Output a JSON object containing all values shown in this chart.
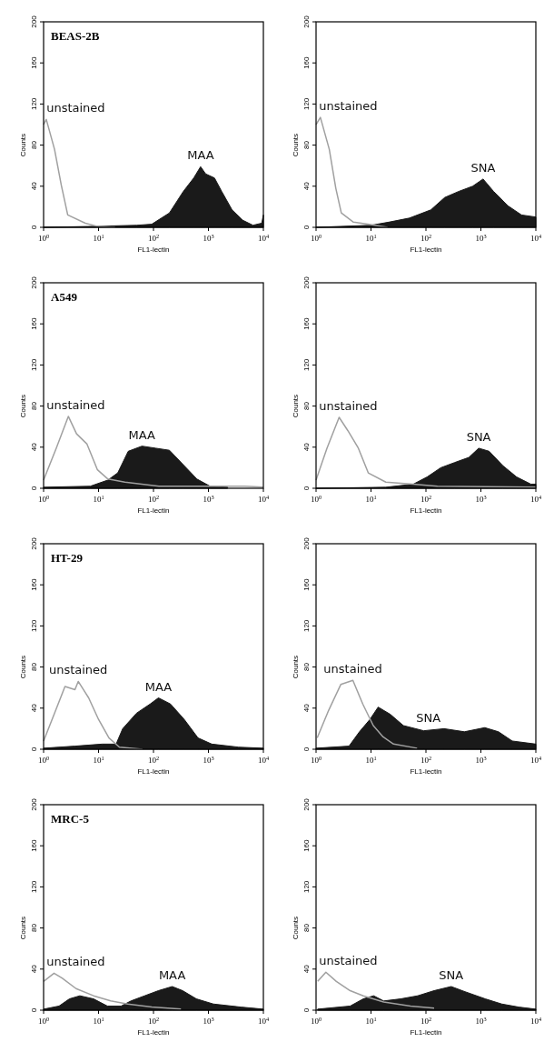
{
  "chart_data": [
    {
      "type": "area",
      "title": "BEAS-2B",
      "xlabel": "FL1-lectin",
      "ylabel": "Counts",
      "log": "x",
      "xlim": [
        1,
        10000
      ],
      "ylim": [
        0,
        200
      ],
      "xticks": [
        {
          "value": 1,
          "label": "10$^{0}$"
        },
        {
          "value": 10,
          "label": "10$^{1}$"
        },
        {
          "value": 100,
          "label": "10$^{2}$"
        },
        {
          "value": 1000,
          "label": "10$^{3}$"
        },
        {
          "value": 10000,
          "label": "10$^{4}$"
        }
      ],
      "yticks": [
        0,
        40,
        80,
        120,
        160,
        200
      ],
      "series": [
        {
          "name": "MAA",
          "color": "#1a1a1a",
          "x": [
            1,
            10,
            50,
            93,
            195,
            350,
            540,
            720,
            890,
            1290,
            1740,
            2690,
            4170,
            6460,
            9330,
            10000
          ],
          "values": [
            0,
            1,
            2,
            3,
            14,
            35,
            48,
            59,
            52,
            48,
            35,
            17,
            7,
            2,
            4,
            12
          ]
        },
        {
          "name": "unstained",
          "type": "line",
          "color": "#a0a0a0",
          "x": [
            1,
            1.12,
            1.58,
            2.1,
            2.75,
            5.75,
            9.5,
            20
          ],
          "values": [
            100,
            105,
            76,
            41,
            12,
            4,
            1,
            0
          ]
        }
      ]
    },
    {
      "type": "area",
      "xlabel": "FL1-lectin",
      "ylabel": "Counts",
      "log": "x",
      "xlim": [
        1,
        10000
      ],
      "ylim": [
        0,
        200
      ],
      "xticks": [
        {
          "value": 1,
          "label": "10$^{0}$"
        },
        {
          "value": 10,
          "label": "10$^{1}$"
        },
        {
          "value": 100,
          "label": "10$^{2}$"
        },
        {
          "value": 1000,
          "label": "10$^{3}$"
        },
        {
          "value": 10000,
          "label": "10$^{4}$"
        }
      ],
      "yticks": [
        0,
        40,
        80,
        120,
        160,
        200
      ],
      "series": [
        {
          "name": "SNA",
          "color": "#1a1a1a",
          "x": [
            1,
            10,
            21,
            50,
            123,
            219,
            398,
            708,
            1096,
            1698,
            3090,
            5495,
            10000
          ],
          "values": [
            0,
            2,
            5,
            9,
            17,
            29,
            35,
            40,
            47,
            35,
            21,
            12,
            10
          ]
        },
        {
          "name": "unstained",
          "type": "line",
          "color": "#a0a0a0",
          "x": [
            1,
            1.2,
            1.74,
            2.29,
            2.88,
            4.79,
            8.7,
            20
          ],
          "values": [
            100,
            107,
            76,
            38,
            14,
            5,
            3,
            0
          ]
        }
      ]
    },
    {
      "type": "area",
      "title": "A549",
      "xlabel": "FL1-lectin",
      "ylabel": "Counts",
      "log": "x",
      "xlim": [
        1,
        10000
      ],
      "ylim": [
        0,
        200
      ],
      "xticks": [
        {
          "value": 1,
          "label": "10$^{0}$"
        },
        {
          "value": 10,
          "label": "10$^{1}$"
        },
        {
          "value": 100,
          "label": "10$^{2}$"
        },
        {
          "value": 1000,
          "label": "10$^{3}$"
        },
        {
          "value": 10000,
          "label": "10$^{4}$"
        }
      ],
      "yticks": [
        0,
        40,
        80,
        120,
        160,
        200
      ],
      "series": [
        {
          "name": "MAA",
          "color": "#1a1a1a",
          "x": [
            1,
            7.08,
            14.8,
            22.4,
            34.7,
            61.7,
            110,
            195,
            347,
            617,
            1072,
            2239
          ],
          "values": [
            1,
            2,
            8,
            15,
            36,
            41,
            39,
            37,
            23,
            9,
            2,
            1
          ]
        },
        {
          "name": "unstained",
          "type": "line",
          "color": "#a0a0a0",
          "x": [
            1,
            1.7,
            2.82,
            3.98,
            6.17,
            9.55,
            14.8,
            30.2,
            126,
            1072,
            4571,
            10000
          ],
          "values": [
            8,
            39,
            70,
            53,
            43,
            18,
            9,
            6,
            2,
            2,
            2,
            1
          ]
        }
      ]
    },
    {
      "type": "area",
      "xlabel": "FL1-lectin",
      "ylabel": "Counts",
      "log": "x",
      "xlim": [
        1,
        10000
      ],
      "ylim": [
        0,
        200
      ],
      "xticks": [
        {
          "value": 1,
          "label": "10$^{0}$"
        },
        {
          "value": 10,
          "label": "10$^{1}$"
        },
        {
          "value": 100,
          "label": "10$^{2}$"
        },
        {
          "value": 1000,
          "label": "10$^{3}$"
        },
        {
          "value": 10000,
          "label": "10$^{4}$"
        }
      ],
      "yticks": [
        0,
        40,
        80,
        120,
        160,
        200
      ],
      "series": [
        {
          "name": "SNA",
          "color": "#1a1a1a",
          "x": [
            1,
            18.6,
            58.9,
            105,
            186,
            331,
            603,
            912,
            1413,
            2512,
            4467,
            8128,
            10000
          ],
          "values": [
            0,
            1,
            4,
            11,
            20,
            25,
            30,
            39,
            36,
            22,
            11,
            4,
            4
          ]
        },
        {
          "name": "unstained",
          "type": "line",
          "color": "#a0a0a0",
          "x": [
            1,
            1.58,
            2.63,
            3.8,
            5.89,
            8.91,
            18.6,
            58.9,
            162,
            10000
          ],
          "values": [
            8,
            39,
            69,
            56,
            39,
            15,
            6,
            4,
            2,
            1
          ]
        }
      ]
    },
    {
      "type": "area",
      "title": "HT-29",
      "xlabel": "FL1-lectin",
      "ylabel": "Counts",
      "log": "x",
      "xlim": [
        1,
        10000
      ],
      "ylim": [
        0,
        200
      ],
      "xticks": [
        {
          "value": 1,
          "label": "10$^{0}$"
        },
        {
          "value": 10,
          "label": "10$^{1}$"
        },
        {
          "value": 100,
          "label": "10$^{2}$"
        },
        {
          "value": 1000,
          "label": "10$^{3}$"
        },
        {
          "value": 10000,
          "label": "10$^{4}$"
        }
      ],
      "yticks": [
        0,
        40,
        80,
        120,
        160,
        200
      ],
      "series": [
        {
          "name": "MAA",
          "color": "#1a1a1a",
          "x": [
            1,
            3.72,
            11.7,
            20.9,
            27.5,
            49,
            87,
            123,
            204,
            363,
            646,
            1148,
            3548,
            10000
          ],
          "values": [
            1,
            3,
            5,
            5,
            20,
            35,
            44,
            50,
            44,
            29,
            11,
            5,
            2,
            1
          ]
        },
        {
          "name": "unstained",
          "type": "line",
          "color": "#a0a0a0",
          "x": [
            1,
            1.58,
            2.45,
            3.72,
            4.27,
            6.61,
            10,
            15.5,
            24,
            63
          ],
          "values": [
            8,
            35,
            61,
            58,
            66,
            50,
            29,
            11,
            2,
            0
          ]
        }
      ]
    },
    {
      "type": "area",
      "xlabel": "FL1-lectin",
      "ylabel": "Counts",
      "log": "x",
      "xlim": [
        1,
        10000
      ],
      "ylim": [
        0,
        200
      ],
      "xticks": [
        {
          "value": 1,
          "label": "10$^{0}$"
        },
        {
          "value": 10,
          "label": "10$^{1}$"
        },
        {
          "value": 100,
          "label": "10$^{2}$"
        },
        {
          "value": 1000,
          "label": "10$^{3}$"
        },
        {
          "value": 10000,
          "label": "10$^{4}$"
        }
      ],
      "yticks": [
        0,
        40,
        80,
        120,
        160,
        200
      ],
      "series": [
        {
          "name": "SNA",
          "color": "#1a1a1a",
          "x": [
            1,
            3.98,
            6.17,
            9.55,
            13.5,
            22.4,
            38.9,
            91,
            214,
            501,
            1175,
            2089,
            3715,
            10000
          ],
          "values": [
            1,
            3,
            17,
            29,
            41,
            34,
            23,
            18,
            20,
            17,
            21,
            17,
            8,
            5
          ]
        },
        {
          "name": "unstained",
          "type": "line",
          "color": "#a0a0a0",
          "x": [
            1.05,
            1.7,
            2.82,
            4.68,
            7.08,
            11,
            16.6,
            25.7,
            69
          ],
          "values": [
            11,
            38,
            63,
            67,
            44,
            23,
            12,
            5,
            1
          ]
        }
      ]
    },
    {
      "type": "area",
      "title": "MRC-5",
      "xlabel": "FL1-lectin",
      "ylabel": "Counts",
      "log": "x",
      "xlim": [
        1,
        10000
      ],
      "ylim": [
        0,
        200
      ],
      "xticks": [
        {
          "value": 1,
          "label": "10$^{0}$"
        },
        {
          "value": 10,
          "label": "10$^{1}$"
        },
        {
          "value": 100,
          "label": "10$^{2}$"
        },
        {
          "value": 1000,
          "label": "10$^{3}$"
        },
        {
          "value": 10000,
          "label": "10$^{4}$"
        }
      ],
      "yticks": [
        0,
        40,
        80,
        120,
        160,
        200
      ],
      "series": [
        {
          "name": "MAA",
          "color": "#1a1a1a",
          "x": [
            1,
            1.91,
            2.95,
            4.57,
            8.13,
            14.5,
            25.7,
            38.9,
            69,
            123,
            219,
            339,
            603,
            1230,
            3890,
            10000
          ],
          "values": [
            1,
            4,
            11,
            14,
            11,
            4,
            4,
            9,
            14,
            19,
            23,
            19,
            11,
            6,
            3,
            1
          ]
        },
        {
          "name": "unstained",
          "type": "line",
          "color": "#a0a0a0",
          "x": [
            1,
            1.55,
            2.19,
            3.89,
            8.13,
            16.6,
            33.9,
            93,
            316
          ],
          "values": [
            28,
            36,
            31,
            21,
            14,
            9,
            6,
            3,
            1
          ]
        }
      ]
    },
    {
      "type": "area",
      "xlabel": "FL1-lectin",
      "ylabel": "Counts",
      "log": "x",
      "xlim": [
        1,
        10000
      ],
      "ylim": [
        0,
        200
      ],
      "xticks": [
        {
          "value": 1,
          "label": "10$^{0}$"
        },
        {
          "value": 10,
          "label": "10$^{1}$"
        },
        {
          "value": 100,
          "label": "10$^{2}$"
        },
        {
          "value": 1000,
          "label": "10$^{3}$"
        },
        {
          "value": 10000,
          "label": "10$^{4}$"
        }
      ],
      "yticks": [
        0,
        40,
        80,
        120,
        160,
        200
      ],
      "series": [
        {
          "name": "SNA",
          "color": "#1a1a1a",
          "x": [
            1.07,
            4.17,
            7.24,
            11.2,
            17,
            34.7,
            70.8,
            141,
            288,
            513,
            1202,
            2399,
            4898,
            10000
          ],
          "values": [
            1,
            4,
            11,
            14,
            9,
            11,
            14,
            19,
            23,
            18,
            11,
            6,
            3,
            1
          ]
        },
        {
          "name": "unstained",
          "type": "line",
          "color": "#a0a0a0",
          "x": [
            1.07,
            1.51,
            2.34,
            4.17,
            7.24,
            17,
            52.5,
            141
          ],
          "values": [
            28,
            37,
            28,
            19,
            14,
            8,
            4,
            2
          ]
        }
      ]
    }
  ]
}
